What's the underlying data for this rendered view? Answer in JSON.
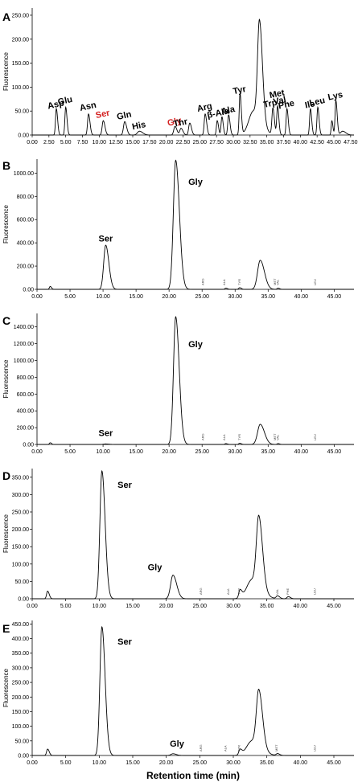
{
  "figure": {
    "xlabel": "Retention time (min)"
  },
  "chart_data": [
    {
      "type": "line",
      "panel_label": "A",
      "ylabel": "Fluorescence",
      "xlim": [
        0,
        48
      ],
      "ylim": [
        0,
        265
      ],
      "x_ticks": [
        "0.00",
        "2.50",
        "5.00",
        "7.50",
        "10.00",
        "12.50",
        "15.00",
        "17.50",
        "20.00",
        "22.50",
        "25.00",
        "27.50",
        "30.00",
        "32.50",
        "35.00",
        "37.50",
        "40.00",
        "42.50",
        "45.00",
        "47.50"
      ],
      "y_ticks": [
        {
          "value": 0,
          "label": "0.00"
        },
        {
          "value": 50,
          "label": "50.00"
        },
        {
          "value": 100,
          "label": "100.00"
        },
        {
          "value": 150,
          "label": "150.00"
        },
        {
          "value": 200,
          "label": "200.00"
        },
        {
          "value": 250,
          "label": "250.00"
        }
      ],
      "peaks": [
        {
          "rt": 3.6,
          "h": 55,
          "w": 0.12
        },
        {
          "rt": 5.0,
          "h": 58,
          "w": 0.12
        },
        {
          "rt": 8.4,
          "h": 44,
          "w": 0.14
        },
        {
          "rt": 10.6,
          "h": 30,
          "w": 0.16
        },
        {
          "rt": 13.8,
          "h": 28,
          "w": 0.18
        },
        {
          "rt": 16.0,
          "h": 8,
          "w": 0.3
        },
        {
          "rt": 21.3,
          "h": 18,
          "w": 0.18
        },
        {
          "rt": 22.2,
          "h": 14,
          "w": 0.18
        },
        {
          "rt": 23.5,
          "h": 25,
          "w": 0.16
        },
        {
          "rt": 25.8,
          "h": 44,
          "w": 0.14
        },
        {
          "rt": 27.6,
          "h": 30,
          "w": 0.12
        },
        {
          "rt": 28.3,
          "h": 38,
          "w": 0.12
        },
        {
          "rt": 29.3,
          "h": 42,
          "w": 0.13
        },
        {
          "rt": 31.0,
          "h": 86,
          "w": 0.12
        },
        {
          "rt": 33.0,
          "h": 50,
          "w": 0.7
        },
        {
          "rt": 33.9,
          "h": 205,
          "w": 0.28
        },
        {
          "rt": 35.9,
          "h": 55,
          "w": 0.14
        },
        {
          "rt": 36.6,
          "h": 60,
          "w": 0.12
        },
        {
          "rt": 38.0,
          "h": 55,
          "w": 0.12
        },
        {
          "rt": 41.5,
          "h": 55,
          "w": 0.12
        },
        {
          "rt": 42.6,
          "h": 58,
          "w": 0.12
        },
        {
          "rt": 44.7,
          "h": 30,
          "w": 0.1
        },
        {
          "rt": 45.3,
          "h": 72,
          "w": 0.12
        },
        {
          "rt": 46.3,
          "h": 8,
          "w": 0.3
        }
      ],
      "annotations": [
        {
          "text": "Asp",
          "rt": 3.6,
          "v": 58,
          "color": "#000000"
        },
        {
          "text": "Glu",
          "rt": 5.0,
          "v": 66,
          "color": "#000000"
        },
        {
          "text": "Asn",
          "rt": 8.4,
          "v": 54,
          "color": "#000000"
        },
        {
          "text": "Ser",
          "rt": 10.6,
          "v": 38,
          "color": "#d42020"
        },
        {
          "text": "Gln",
          "rt": 13.8,
          "v": 35,
          "color": "#000000"
        },
        {
          "text": "His",
          "rt": 16.0,
          "v": 14,
          "color": "#000000"
        },
        {
          "text": "Gly",
          "rt": 21.3,
          "v": 22,
          "color": "#d42020"
        },
        {
          "text": "Thr",
          "rt": 22.2,
          "v": 20,
          "color": "#000000"
        },
        {
          "text": "Arg",
          "rt": 25.8,
          "v": 52,
          "color": "#000000"
        },
        {
          "text": "β-Ala",
          "rt": 27.8,
          "v": 40,
          "color": "#000000"
        },
        {
          "text": "Ala",
          "rt": 29.3,
          "v": 46,
          "color": "#000000"
        },
        {
          "text": "Tyr",
          "rt": 31.0,
          "v": 88,
          "color": "#000000"
        },
        {
          "text": "Trp",
          "rt": 35.6,
          "v": 60,
          "color": "#000000"
        },
        {
          "text": "Met",
          "rt": 36.6,
          "v": 80,
          "color": "#000000"
        },
        {
          "text": "Val",
          "rt": 37.0,
          "v": 66,
          "color": "#000000"
        },
        {
          "text": "Phe",
          "rt": 38.0,
          "v": 58,
          "color": "#000000"
        },
        {
          "text": "Ile",
          "rt": 41.5,
          "v": 58,
          "color": "#000000"
        },
        {
          "text": "Leu",
          "rt": 42.6,
          "v": 64,
          "color": "#000000"
        },
        {
          "text": "Lys",
          "rt": 45.3,
          "v": 76,
          "color": "#000000"
        }
      ]
    },
    {
      "type": "line",
      "panel_label": "B",
      "ylabel": "Fluorescence",
      "xlim": [
        0,
        48
      ],
      "ylim": [
        0,
        1120
      ],
      "x_ticks": [
        "0.00",
        "5.00",
        "10.00",
        "15.00",
        "20.00",
        "25.00",
        "30.00",
        "35.00",
        "40.00",
        "45.00"
      ],
      "y_ticks": [
        {
          "value": 0,
          "label": "0.00"
        },
        {
          "value": 200,
          "label": "200.00"
        },
        {
          "value": 400,
          "label": "400.00"
        },
        {
          "value": 600,
          "label": "600.00"
        },
        {
          "value": 800,
          "label": "800.00"
        },
        {
          "value": 1000,
          "label": "1000.00"
        }
      ],
      "peaks": [
        {
          "rt": 2.0,
          "h": 25,
          "w": 0.12
        },
        {
          "rt": 10.4,
          "h": 380,
          "w": 0.3
        },
        {
          "rt": 21.0,
          "h": 1110,
          "w": 0.35
        },
        {
          "rt": 28.6,
          "h": 10,
          "w": 0.15
        },
        {
          "rt": 30.7,
          "h": 14,
          "w": 0.15
        },
        {
          "rt": 33.8,
          "h": 250,
          "w": 0.4
        },
        {
          "rt": 36.5,
          "h": 10,
          "w": 0.15
        }
      ],
      "annotations": [
        {
          "text": "Ser",
          "rt": 10.4,
          "v": 410,
          "color": "#000000"
        },
        {
          "text": "Gly",
          "rt": 24.0,
          "v": 900,
          "color": "#000000"
        }
      ],
      "small_labels": [
        {
          "text": "ARG",
          "rt": 25.3
        },
        {
          "text": "ALA",
          "rt": 28.5
        },
        {
          "text": "TYR",
          "rt": 30.8
        },
        {
          "text": "MET",
          "rt": 36.2
        },
        {
          "text": "VAL",
          "rt": 36.6
        },
        {
          "text": "LEU",
          "rt": 42.3
        }
      ]
    },
    {
      "type": "line",
      "panel_label": "C",
      "ylabel": "Fluorescence",
      "xlim": [
        0,
        48
      ],
      "ylim": [
        0,
        1560
      ],
      "x_ticks": [
        "0.00",
        "5.00",
        "10.00",
        "15.00",
        "20.00",
        "25.00",
        "30.00",
        "35.00",
        "40.00",
        "45.00"
      ],
      "y_ticks": [
        {
          "value": 0,
          "label": "0.00"
        },
        {
          "value": 200,
          "label": "200.00"
        },
        {
          "value": 400,
          "label": "400.00"
        },
        {
          "value": 600,
          "label": "600.00"
        },
        {
          "value": 800,
          "label": "800.00"
        },
        {
          "value": 1000,
          "label": "1000.00"
        },
        {
          "value": 1200,
          "label": "1200.00"
        },
        {
          "value": 1400,
          "label": "1400.00"
        }
      ],
      "peaks": [
        {
          "rt": 2.0,
          "h": 20,
          "w": 0.12
        },
        {
          "rt": 10.4,
          "h": 6,
          "w": 0.3
        },
        {
          "rt": 21.0,
          "h": 1520,
          "w": 0.33
        },
        {
          "rt": 28.6,
          "h": 10,
          "w": 0.15
        },
        {
          "rt": 30.7,
          "h": 14,
          "w": 0.15
        },
        {
          "rt": 33.8,
          "h": 240,
          "w": 0.4
        },
        {
          "rt": 36.5,
          "h": 10,
          "w": 0.15
        }
      ],
      "annotations": [
        {
          "text": "Ser",
          "rt": 10.4,
          "v": 100,
          "color": "#000000"
        },
        {
          "text": "Gly",
          "rt": 24.0,
          "v": 1160,
          "color": "#000000"
        }
      ],
      "small_labels": [
        {
          "text": "ARG",
          "rt": 25.3
        },
        {
          "text": "ALA",
          "rt": 28.5
        },
        {
          "text": "TYR",
          "rt": 30.8
        },
        {
          "text": "MET",
          "rt": 36.2
        },
        {
          "text": "VAL",
          "rt": 36.6
        },
        {
          "text": "LEU",
          "rt": 42.3
        }
      ]
    },
    {
      "type": "line",
      "panel_label": "D",
      "ylabel": "Fluorescence",
      "xlim": [
        0,
        48
      ],
      "ylim": [
        0,
        375
      ],
      "x_ticks": [
        "0.00",
        "5.00",
        "10.00",
        "15.00",
        "20.00",
        "25.00",
        "30.00",
        "35.00",
        "40.00",
        "45.00"
      ],
      "y_ticks": [
        {
          "value": 0,
          "label": "0.00"
        },
        {
          "value": 50,
          "label": "50.00"
        },
        {
          "value": 100,
          "label": "100.00"
        },
        {
          "value": 150,
          "label": "150.00"
        },
        {
          "value": 200,
          "label": "200.00"
        },
        {
          "value": 250,
          "label": "250.00"
        },
        {
          "value": 300,
          "label": "300.00"
        },
        {
          "value": 350,
          "label": "350.00"
        }
      ],
      "peaks": [
        {
          "rt": 2.3,
          "h": 22,
          "w": 0.15
        },
        {
          "rt": 10.4,
          "h": 368,
          "w": 0.3
        },
        {
          "rt": 21.0,
          "h": 68,
          "w": 0.35
        },
        {
          "rt": 31.0,
          "h": 22,
          "w": 0.18
        },
        {
          "rt": 32.8,
          "h": 55,
          "w": 0.8
        },
        {
          "rt": 33.8,
          "h": 200,
          "w": 0.35
        },
        {
          "rt": 36.6,
          "h": 8,
          "w": 0.2
        },
        {
          "rt": 38.2,
          "h": 6,
          "w": 0.2
        }
      ],
      "annotations": [
        {
          "text": "Ser",
          "rt": 13.8,
          "v": 320,
          "color": "#000000"
        },
        {
          "text": "Gly",
          "rt": 18.3,
          "v": 82,
          "color": "#000000"
        }
      ],
      "small_labels": [
        {
          "text": "ARG",
          "rt": 25.3
        },
        {
          "text": "ALA",
          "rt": 29.4
        },
        {
          "text": "TYR",
          "rt": 31.0
        },
        {
          "text": "VAL",
          "rt": 36.7
        },
        {
          "text": "PHE",
          "rt": 38.3
        },
        {
          "text": "LEU",
          "rt": 42.3
        }
      ]
    },
    {
      "type": "line",
      "panel_label": "E",
      "ylabel": "Fluorescence",
      "xlim": [
        0,
        48
      ],
      "ylim": [
        0,
        462
      ],
      "x_ticks": [
        "0.00",
        "5.00",
        "10.00",
        "15.00",
        "20.00",
        "25.00",
        "30.00",
        "35.00",
        "40.00",
        "45.00"
      ],
      "y_ticks": [
        {
          "value": 0,
          "label": "0.00"
        },
        {
          "value": 50,
          "label": "50.00"
        },
        {
          "value": 100,
          "label": "100.00"
        },
        {
          "value": 150,
          "label": "150.00"
        },
        {
          "value": 200,
          "label": "200.00"
        },
        {
          "value": 250,
          "label": "250.00"
        },
        {
          "value": 300,
          "label": "300.00"
        },
        {
          "value": 350,
          "label": "350.00"
        },
        {
          "value": 400,
          "label": "400.00"
        },
        {
          "value": 450,
          "label": "450.00"
        }
      ],
      "peaks": [
        {
          "rt": 2.3,
          "h": 22,
          "w": 0.15
        },
        {
          "rt": 10.4,
          "h": 440,
          "w": 0.3
        },
        {
          "rt": 21.0,
          "h": 6,
          "w": 0.3
        },
        {
          "rt": 31.0,
          "h": 18,
          "w": 0.18
        },
        {
          "rt": 32.8,
          "h": 50,
          "w": 0.8
        },
        {
          "rt": 33.8,
          "h": 190,
          "w": 0.35
        },
        {
          "rt": 36.6,
          "h": 6,
          "w": 0.2
        }
      ],
      "annotations": [
        {
          "text": "Ser",
          "rt": 13.8,
          "v": 380,
          "color": "#000000"
        },
        {
          "text": "Gly",
          "rt": 21.6,
          "v": 30,
          "color": "#000000"
        }
      ],
      "small_labels": [
        {
          "text": "ARG",
          "rt": 25.3
        },
        {
          "text": "ALA",
          "rt": 29.0
        },
        {
          "text": "TYR",
          "rt": 31.0
        },
        {
          "text": "MET",
          "rt": 36.6
        },
        {
          "text": "LEU",
          "rt": 42.3
        }
      ]
    }
  ]
}
